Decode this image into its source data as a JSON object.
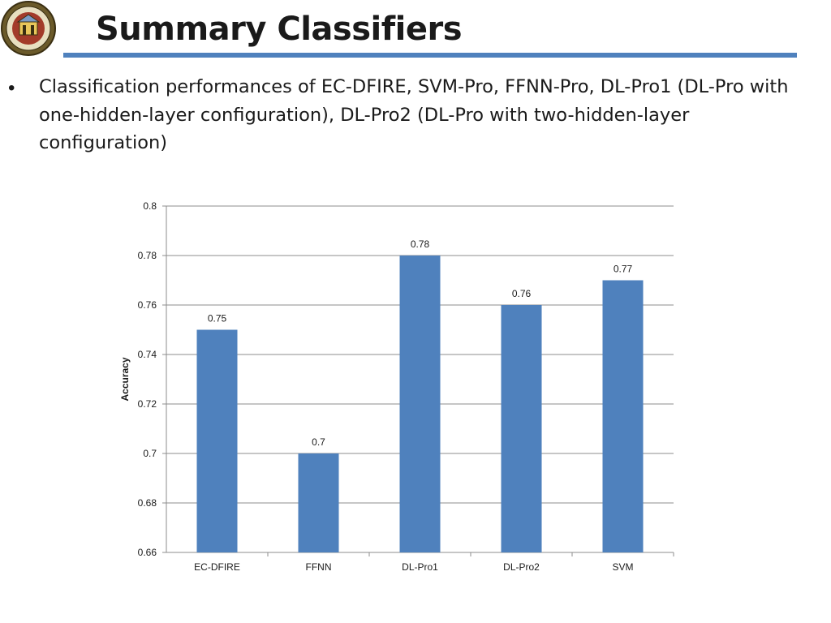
{
  "slide": {
    "title": "Summary Classifiers",
    "bullets": [
      "Classification performances of EC-DFIRE, SVM-Pro, FFNN-Pro, DL-Pro1 (DL-Pro with one-hidden-layer configuration), DL-Pro2 (DL-Pro with two-hidden-layer configuration)"
    ],
    "colors": {
      "accent": "#4f81bd",
      "title_text": "#1a1a1a"
    },
    "logo_icon": "university-seal-icon"
  },
  "chart_data": {
    "type": "bar",
    "categories": [
      "EC-DFIRE",
      "FFNN",
      "DL-Pro1",
      "DL-Pro2",
      "SVM"
    ],
    "values": [
      0.75,
      0.7,
      0.78,
      0.76,
      0.77
    ],
    "data_labels": [
      "0.75",
      "0.7",
      "0.78",
      "0.76",
      "0.77"
    ],
    "title": "",
    "xlabel": "",
    "ylabel": "Accuracy",
    "ylim": [
      0.66,
      0.8
    ],
    "yticks": [
      "0.66",
      "0.68",
      "0.7",
      "0.72",
      "0.74",
      "0.76",
      "0.78",
      "0.8"
    ],
    "ytick_values": [
      0.66,
      0.68,
      0.7,
      0.72,
      0.74,
      0.76,
      0.78,
      0.8
    ],
    "grid": true,
    "legend": "none",
    "bar_color": "#4f81bd"
  }
}
